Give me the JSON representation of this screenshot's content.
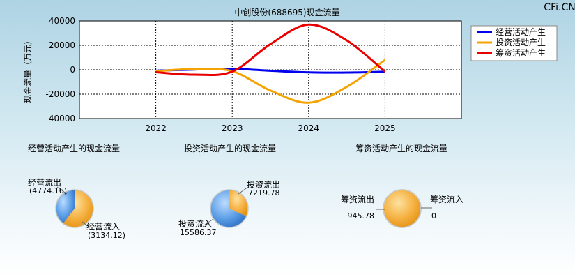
{
  "watermark": "CFi.CN",
  "chart_data": [
    {
      "type": "line",
      "title": "中创股份(688695)现金流量",
      "ylabel": "现金流量（万元）",
      "xlabel": "",
      "x_ticks": [
        "2022",
        "2023",
        "2024",
        "2025"
      ],
      "y_ticks": [
        "40000",
        "20000",
        "0",
        "-20000",
        "-40000"
      ],
      "ylim": [
        -40000,
        40000
      ],
      "xlim": [
        2021,
        2026
      ],
      "grid": true,
      "legend": "top-right",
      "series": [
        {
          "name": "经营活动产生",
          "color": "#0000ee",
          "x": [
            2022,
            2022.5,
            2023,
            2023.5,
            2024,
            2024.5,
            2025
          ],
          "y": [
            -800,
            200,
            800,
            -800,
            -2200,
            -2300,
            -1600
          ]
        },
        {
          "name": "投资活动产生",
          "color": "#f5a300",
          "x": [
            2022,
            2022.5,
            2023,
            2023.5,
            2024,
            2024.5,
            2025
          ],
          "y": [
            -1200,
            600,
            -1200,
            -17000,
            -27000,
            -14000,
            8000
          ]
        },
        {
          "name": "筹资活动产生",
          "color": "#e80000",
          "x": [
            2022,
            2022.5,
            2023,
            2023.5,
            2024,
            2024.5,
            2025
          ],
          "y": [
            -2000,
            -4000,
            -1500,
            21000,
            37000,
            24000,
            -1500
          ]
        }
      ]
    },
    {
      "type": "pie",
      "title": "经营活动产生的现金流量",
      "slices": [
        {
          "label": "经营流出",
          "value_text": "(4774.16)",
          "value": 4774.16,
          "color": "#f5a623"
        },
        {
          "label": "经营流入",
          "value_text": "(3134.12)",
          "value": 3134.12,
          "color": "#4a90e2"
        }
      ]
    },
    {
      "type": "pie",
      "title": "投资活动产生的现金流量",
      "slices": [
        {
          "label": "投资流出",
          "value_text": "7219.78",
          "value": 7219.78,
          "color": "#f5a623"
        },
        {
          "label": "投资流入",
          "value_text": "15586.37",
          "value": 15586.37,
          "color": "#4a90e2"
        }
      ]
    },
    {
      "type": "pie",
      "title": "筹资活动产生的现金流量",
      "slices": [
        {
          "label": "筹资流出",
          "value_text": "945.78",
          "value": 945.78,
          "color": "#f5a623"
        },
        {
          "label": "筹资流入",
          "value_text": "0",
          "value": 0,
          "color": "#4a90e2"
        }
      ]
    }
  ]
}
